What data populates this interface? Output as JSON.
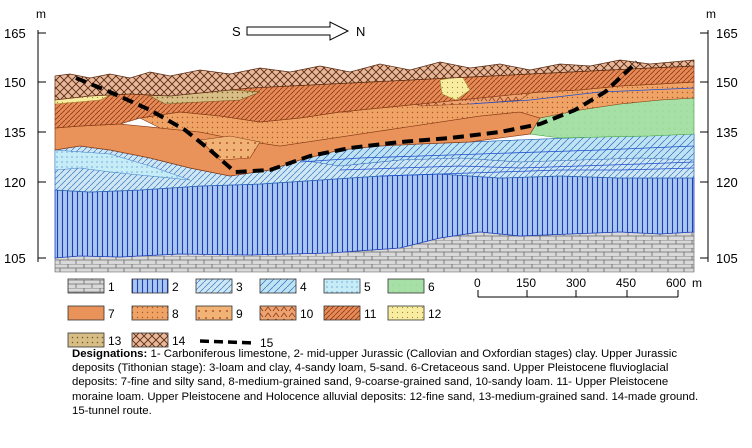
{
  "axis": {
    "unit": "m",
    "ticks": [
      "165",
      "150",
      "135",
      "120",
      "105"
    ]
  },
  "direction": {
    "left": "S",
    "right": "N"
  },
  "legend": [
    {
      "num": "1",
      "fill": "#d9d9d9",
      "pattern": "brick"
    },
    {
      "num": "2",
      "fill": "#a9c6ec",
      "pattern": "vlines"
    },
    {
      "num": "3",
      "fill": "#cfe6f3",
      "pattern": "diag"
    },
    {
      "num": "4",
      "fill": "#bfe3f2",
      "pattern": "diag"
    },
    {
      "num": "5",
      "fill": "#c6ecf8",
      "pattern": "dots"
    },
    {
      "num": "6",
      "fill": "#a6e0a6",
      "pattern": "none"
    },
    {
      "num": "7",
      "fill": "#e9935a",
      "pattern": "none"
    },
    {
      "num": "8",
      "fill": "#efa466",
      "pattern": "dots"
    },
    {
      "num": "9",
      "fill": "#f1b276",
      "pattern": "dots"
    },
    {
      "num": "10",
      "fill": "#eda270",
      "pattern": "caret"
    },
    {
      "num": "11",
      "fill": "#e88a57",
      "pattern": "hatch"
    },
    {
      "num": "12",
      "fill": "#f7eca0",
      "pattern": "dots"
    },
    {
      "num": "13",
      "fill": "#d7bd86",
      "pattern": "dots"
    },
    {
      "num": "14",
      "fill": "#e8b89a",
      "pattern": "cross"
    },
    {
      "num": "15",
      "fill": "#000000",
      "pattern": "dash"
    }
  ],
  "scale_bar": {
    "labels": [
      "0",
      "150",
      "300",
      "450",
      "600"
    ],
    "unit": "m"
  },
  "caption": {
    "heading": "Designations:",
    "text": "1- Carboniferous limestone, 2- mid-upper Jurassic (Callovian and Oxfordian stages) clay. Upper Jurassic deposits (Tithonian stage): 3-loam and clay, 4-sandy loam, 5-sand. 6-Cretaceous sand. Upper Pleistocene fluvioglacial deposits: 7-fine and silty sand, 8-medium-grained sand, 9-coarse-grained sand, 10-sandy loam. 11- Upper Pleistocene moraine loam. Upper Pleistocene and Holocence alluvial deposits: 12-fine sand, 13-medium-grained sand. 14-made ground. 15-tunnel route."
  }
}
